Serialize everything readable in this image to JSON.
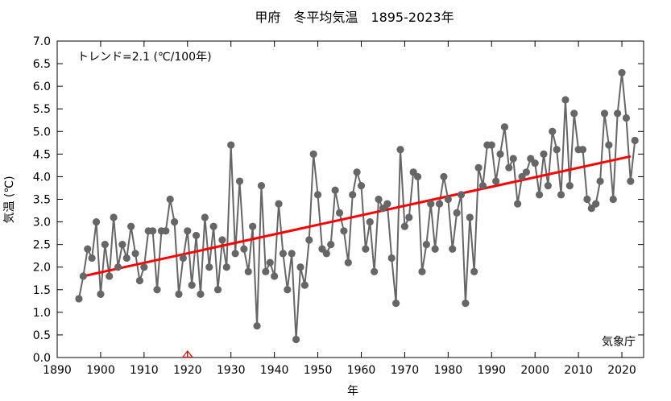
{
  "chart_data": {
    "type": "line",
    "title": "甲府　冬平均気温　1895-2023年",
    "xlabel": "年",
    "ylabel": "気温 (℃)",
    "trend_label": "トレンド=2.1 (℃/100年)",
    "source": "気象庁",
    "xlim": [
      1890,
      2025
    ],
    "ylim": [
      0.0,
      7.0
    ],
    "xticks": [
      "1890",
      "1900",
      "1910",
      "1920",
      "1930",
      "1940",
      "1950",
      "1960",
      "1970",
      "1980",
      "1990",
      "2000",
      "2010",
      "2020"
    ],
    "yticks": [
      "0.0",
      "0.5",
      "1.0",
      "1.5",
      "2.0",
      "2.5",
      "3.0",
      "3.5",
      "4.0",
      "4.5",
      "5.0",
      "5.5",
      "6.0",
      "6.5",
      "7.0"
    ],
    "grid": false,
    "series": [
      {
        "color": "#666666",
        "marker": "circle",
        "x": [
          1895,
          1896,
          1897,
          1898,
          1899,
          1900,
          1901,
          1902,
          1903,
          1904,
          1905,
          1906,
          1907,
          1908,
          1909,
          1910,
          1911,
          1912,
          1913,
          1914,
          1915,
          1916,
          1917,
          1918,
          1919,
          1920,
          1921,
          1922,
          1923,
          1924,
          1925,
          1926,
          1927,
          1928,
          1929,
          1930,
          1931,
          1932,
          1933,
          1934,
          1935,
          1936,
          1937,
          1938,
          1939,
          1940,
          1941,
          1942,
          1943,
          1944,
          1945,
          1946,
          1947,
          1948,
          1949,
          1950,
          1951,
          1952,
          1953,
          1954,
          1955,
          1956,
          1957,
          1958,
          1959,
          1960,
          1961,
          1962,
          1963,
          1964,
          1965,
          1966,
          1967,
          1968,
          1969,
          1970,
          1971,
          1972,
          1973,
          1974,
          1975,
          1976,
          1977,
          1978,
          1979,
          1980,
          1981,
          1982,
          1983,
          1984,
          1985,
          1986,
          1987,
          1988,
          1989,
          1990,
          1991,
          1992,
          1993,
          1994,
          1995,
          1996,
          1997,
          1998,
          1999,
          2000,
          2001,
          2002,
          2003,
          2004,
          2005,
          2006,
          2007,
          2008,
          2009,
          2010,
          2011,
          2012,
          2013,
          2014,
          2015,
          2016,
          2017,
          2018,
          2019,
          2020,
          2021,
          2022,
          2023
        ],
        "values": [
          1.3,
          1.8,
          2.4,
          2.2,
          3.0,
          1.4,
          2.5,
          1.8,
          3.1,
          2.0,
          2.5,
          2.2,
          2.9,
          2.3,
          1.7,
          2.0,
          2.8,
          2.8,
          1.5,
          2.8,
          2.8,
          3.5,
          3.0,
          1.4,
          2.2,
          2.8,
          1.6,
          2.7,
          1.4,
          3.1,
          2.0,
          2.9,
          1.5,
          2.6,
          2.0,
          4.7,
          2.3,
          3.9,
          2.4,
          1.9,
          2.9,
          0.7,
          3.8,
          1.9,
          2.1,
          1.8,
          3.4,
          2.3,
          1.5,
          2.3,
          0.4,
          2.0,
          1.6,
          2.6,
          4.5,
          3.6,
          2.4,
          2.3,
          2.5,
          3.7,
          3.2,
          2.8,
          2.1,
          3.6,
          4.1,
          3.8,
          2.4,
          3.0,
          1.9,
          3.5,
          3.3,
          3.4,
          2.2,
          1.2,
          4.6,
          2.9,
          3.1,
          4.1,
          4.0,
          1.9,
          2.5,
          3.4,
          2.4,
          3.4,
          4.0,
          3.5,
          2.4,
          3.2,
          3.6,
          1.2,
          3.1,
          1.9,
          4.2,
          3.8,
          4.7,
          4.7,
          3.9,
          4.5,
          5.1,
          4.2,
          4.4,
          3.4,
          4.0,
          4.1,
          4.4,
          4.3,
          3.6,
          4.5,
          3.8,
          5.0,
          4.6,
          3.6,
          5.7,
          3.8,
          5.4,
          4.6,
          4.6,
          3.5,
          3.3,
          3.4,
          3.9,
          5.4,
          4.7,
          3.5,
          5.4,
          6.3,
          5.3,
          3.9,
          4.8
        ]
      },
      {
        "color": "#ff0000",
        "x": [
          1896,
          2022
        ],
        "values": [
          1.8,
          4.45
        ]
      }
    ],
    "marker_x": 1920
  }
}
